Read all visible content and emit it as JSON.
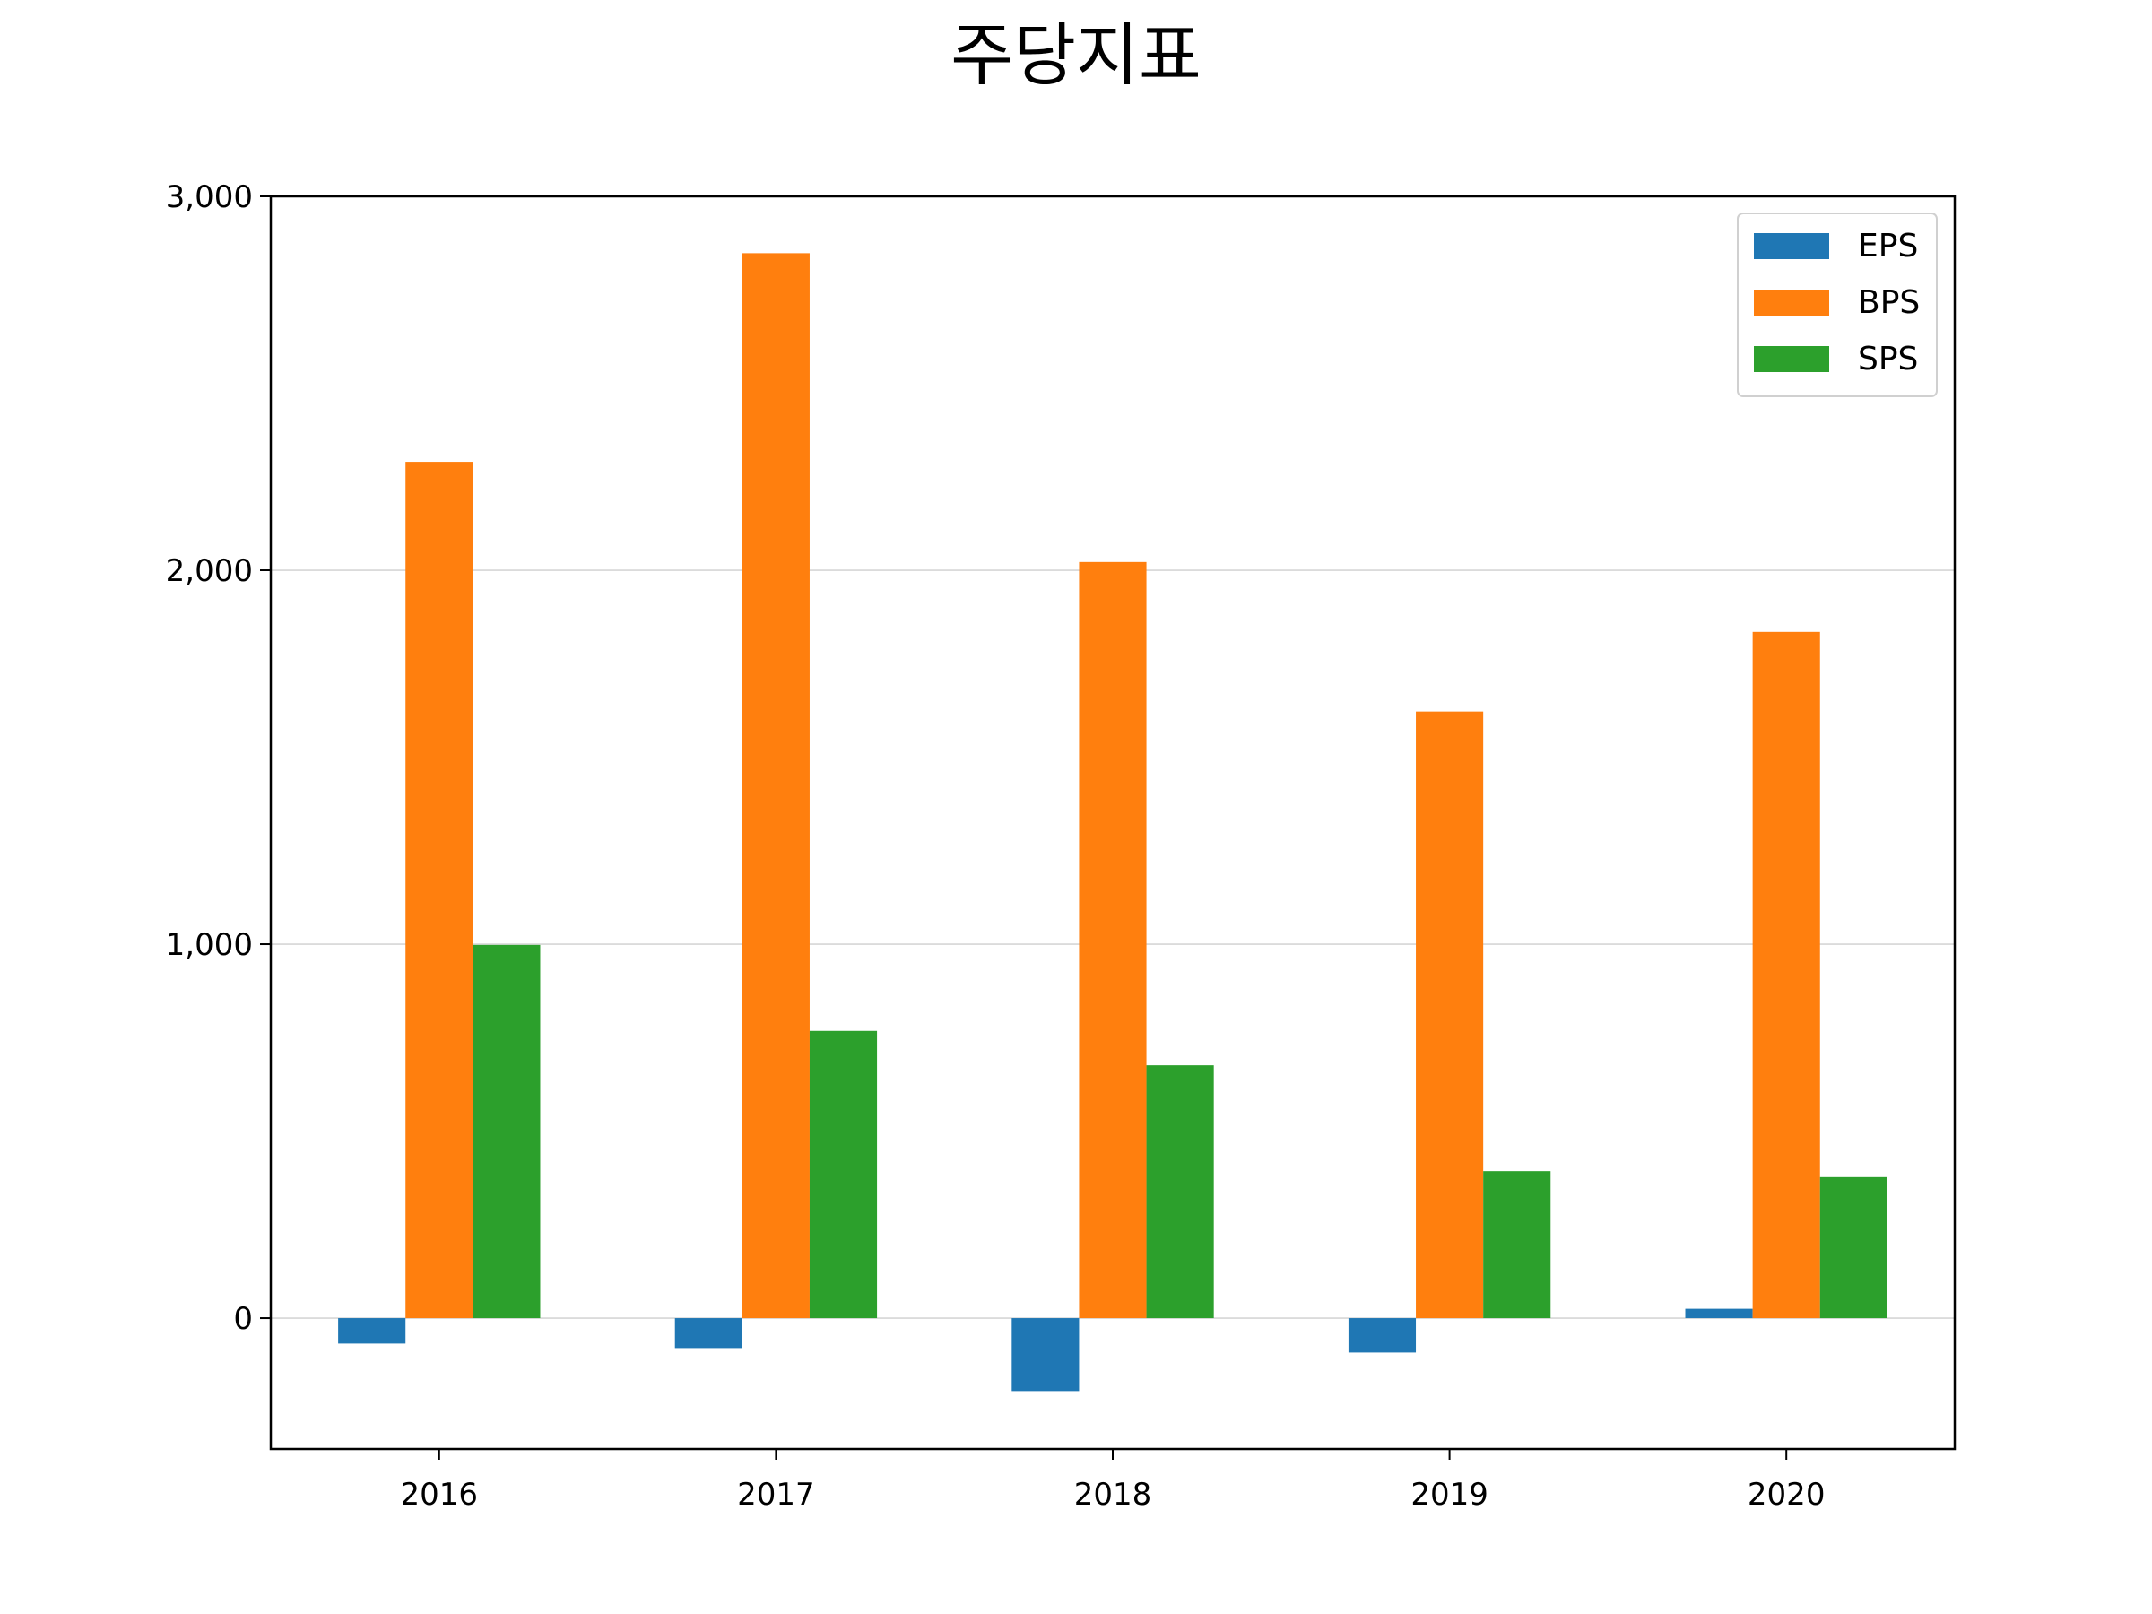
{
  "chart_data": {
    "type": "bar",
    "title": "주당지표",
    "categories": [
      "2016",
      "2017",
      "2018",
      "2019",
      "2020"
    ],
    "series": [
      {
        "name": "EPS",
        "color": "#1f77b4",
        "values": [
          -68,
          -80,
          -195,
          -92,
          25
        ]
      },
      {
        "name": "BPS",
        "color": "#ff7f0e",
        "values": [
          2290,
          2848,
          2022,
          1622,
          1835
        ]
      },
      {
        "name": "SPS",
        "color": "#2ca02c",
        "values": [
          998,
          768,
          676,
          393,
          377
        ]
      }
    ],
    "ylim": [
      -350,
      3000
    ],
    "yticks": [
      0,
      1000,
      2000,
      3000
    ],
    "ytick_labels": [
      "0",
      "1,000",
      "2,000",
      "3,000"
    ],
    "grid": "y",
    "legend": "top-right"
  }
}
